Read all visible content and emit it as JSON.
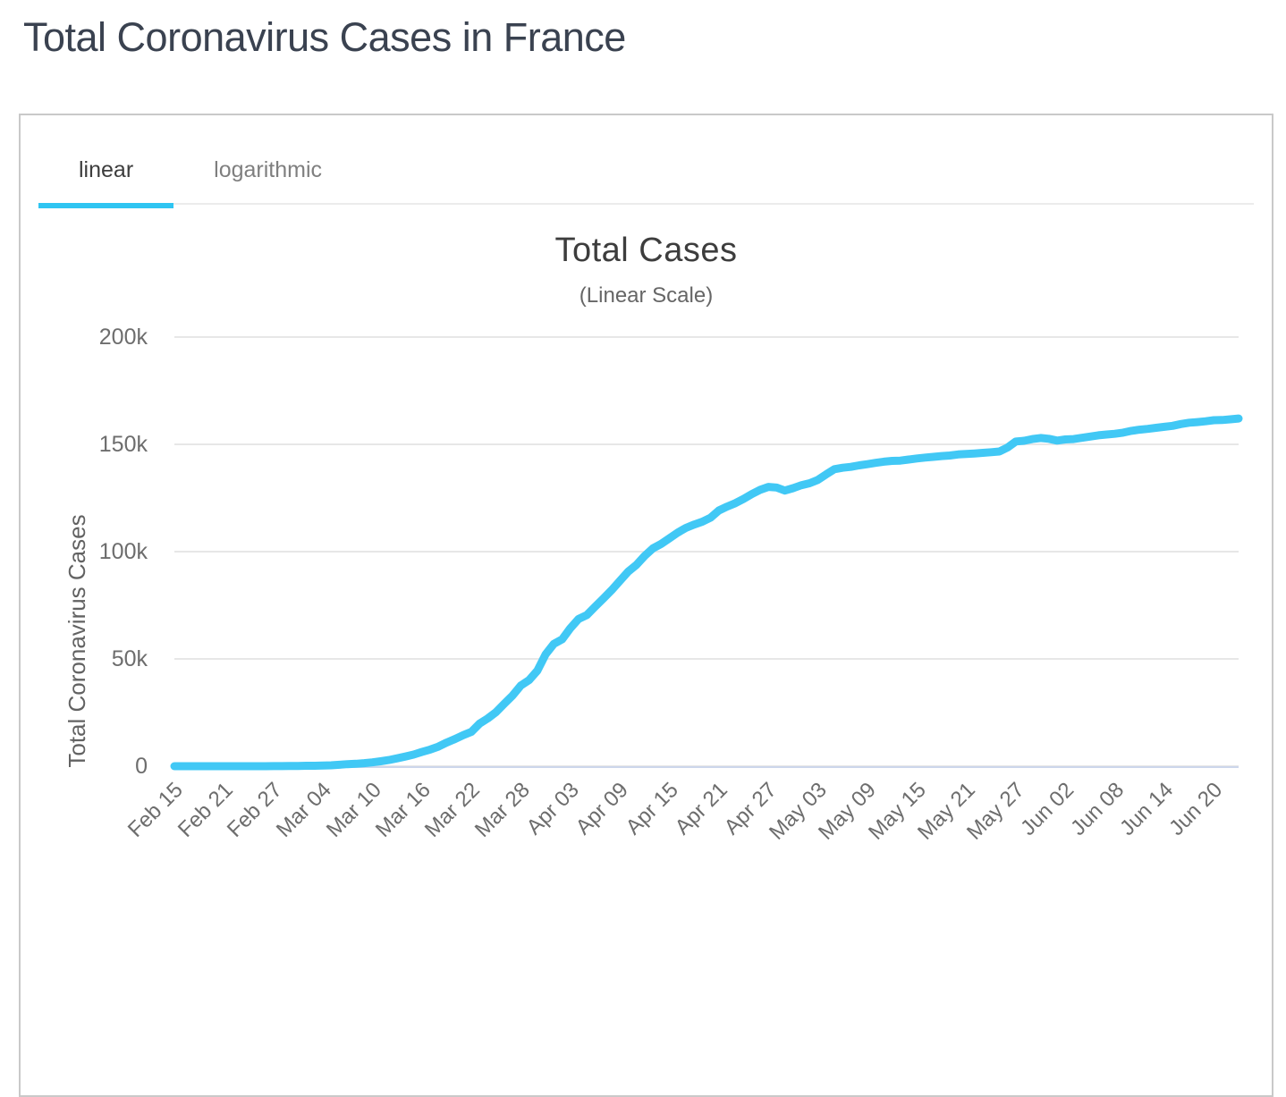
{
  "page": {
    "title": "Total Coronavirus Cases in France"
  },
  "tabs": [
    {
      "label": "linear",
      "active": true
    },
    {
      "label": "logarithmic",
      "active": false
    }
  ],
  "colors": {
    "accent": "#2fc5f2",
    "line": "#41c8f5",
    "grid": "#e7e7e7",
    "axis_line": "#ccd6eb",
    "card_border": "#c9c9c9",
    "tab_divider": "#ececec",
    "title_text": "#3a4250",
    "chart_title_text": "#3d3d3d",
    "muted_text": "#666666",
    "inactive_tab_text": "#7f7f7f",
    "active_tab_text": "#3d3d3d"
  },
  "chart_data": {
    "type": "line",
    "title": "Total Cases",
    "subtitle": "(Linear Scale)",
    "xlabel": "",
    "ylabel": "Total Coronavirus Cases",
    "ylim": [
      0,
      200000
    ],
    "y_ticks": [
      "0",
      "50k",
      "100k",
      "150k",
      "200k"
    ],
    "x_tick_labels": [
      "Feb 15",
      "Feb 21",
      "Feb 27",
      "Mar 04",
      "Mar 10",
      "Mar 16",
      "Mar 22",
      "Mar 28",
      "Apr 03",
      "Apr 09",
      "Apr 15",
      "Apr 21",
      "Apr 27",
      "May 03",
      "May 09",
      "May 15",
      "May 21",
      "May 27",
      "Jun 02",
      "Jun 08",
      "Jun 14",
      "Jun 20"
    ],
    "x_tick_every": 6,
    "grid": "horizontal",
    "legend": "none",
    "series_name": "Total Coronavirus Cases",
    "dates": [
      "Feb 15",
      "Feb 16",
      "Feb 17",
      "Feb 18",
      "Feb 19",
      "Feb 20",
      "Feb 21",
      "Feb 22",
      "Feb 23",
      "Feb 24",
      "Feb 25",
      "Feb 26",
      "Feb 27",
      "Feb 28",
      "Feb 29",
      "Mar 01",
      "Mar 02",
      "Mar 03",
      "Mar 04",
      "Mar 05",
      "Mar 06",
      "Mar 07",
      "Mar 08",
      "Mar 09",
      "Mar 10",
      "Mar 11",
      "Mar 12",
      "Mar 13",
      "Mar 14",
      "Mar 15",
      "Mar 16",
      "Mar 17",
      "Mar 18",
      "Mar 19",
      "Mar 20",
      "Mar 21",
      "Mar 22",
      "Mar 23",
      "Mar 24",
      "Mar 25",
      "Mar 26",
      "Mar 27",
      "Mar 28",
      "Mar 29",
      "Mar 30",
      "Mar 31",
      "Apr 01",
      "Apr 02",
      "Apr 03",
      "Apr 04",
      "Apr 05",
      "Apr 06",
      "Apr 07",
      "Apr 08",
      "Apr 09",
      "Apr 10",
      "Apr 11",
      "Apr 12",
      "Apr 13",
      "Apr 14",
      "Apr 15",
      "Apr 16",
      "Apr 17",
      "Apr 18",
      "Apr 19",
      "Apr 20",
      "Apr 21",
      "Apr 22",
      "Apr 23",
      "Apr 24",
      "Apr 25",
      "Apr 26",
      "Apr 27",
      "Apr 28",
      "Apr 29",
      "Apr 30",
      "May 01",
      "May 02",
      "May 03",
      "May 04",
      "May 05",
      "May 06",
      "May 07",
      "May 08",
      "May 09",
      "May 10",
      "May 11",
      "May 12",
      "May 13",
      "May 14",
      "May 15",
      "May 16",
      "May 17",
      "May 18",
      "May 19",
      "May 20",
      "May 21",
      "May 22",
      "May 23",
      "May 24",
      "May 25",
      "May 26",
      "May 27",
      "May 28",
      "May 29",
      "May 30",
      "May 31",
      "Jun 01",
      "Jun 02",
      "Jun 03",
      "Jun 04",
      "Jun 05",
      "Jun 06",
      "Jun 07",
      "Jun 08",
      "Jun 09",
      "Jun 10",
      "Jun 11",
      "Jun 12",
      "Jun 13",
      "Jun 14",
      "Jun 15",
      "Jun 16",
      "Jun 17",
      "Jun 18",
      "Jun 19",
      "Jun 20",
      "Jun 21",
      "Jun 22",
      "Jun 23"
    ],
    "values": [
      12,
      12,
      12,
      12,
      12,
      12,
      12,
      12,
      12,
      12,
      14,
      18,
      38,
      57,
      100,
      130,
      191,
      212,
      285,
      423,
      653,
      949,
      1126,
      1412,
      1784,
      2281,
      2876,
      3661,
      4499,
      5423,
      6633,
      7730,
      9134,
      10995,
      12612,
      14459,
      16018,
      19856,
      22304,
      25233,
      29155,
      32964,
      37575,
      40174,
      44550,
      52128,
      56989,
      59105,
      64338,
      68605,
      70478,
      74390,
      78167,
      82048,
      86334,
      90676,
      93790,
      98010,
      101500,
      103573,
      106206,
      108847,
      111025,
      112606,
      113959,
      115842,
      119151,
      121001,
      122577,
      124575,
      126835,
      128786,
      130185,
      129859,
      128442,
      129581,
      130979,
      131863,
      133403,
      135980,
      138421,
      139063,
      139519,
      140227,
      140734,
      141356,
      141919,
      142291,
      142411,
      142903,
      143427,
      143845,
      144163,
      144556,
      144806,
      145279,
      145555,
      145746,
      146050,
      146350,
      146650,
      148531,
      151325,
      151677,
      152444,
      152971,
      152578,
      151753,
      152280,
      152444,
      153055,
      153634,
      154188,
      154591,
      154930,
      155461,
      156287,
      156813,
      157220,
      157716,
      158174,
      158641,
      159452,
      160093,
      160377,
      160750,
      161267,
      161348,
      161667,
      162028
    ]
  }
}
